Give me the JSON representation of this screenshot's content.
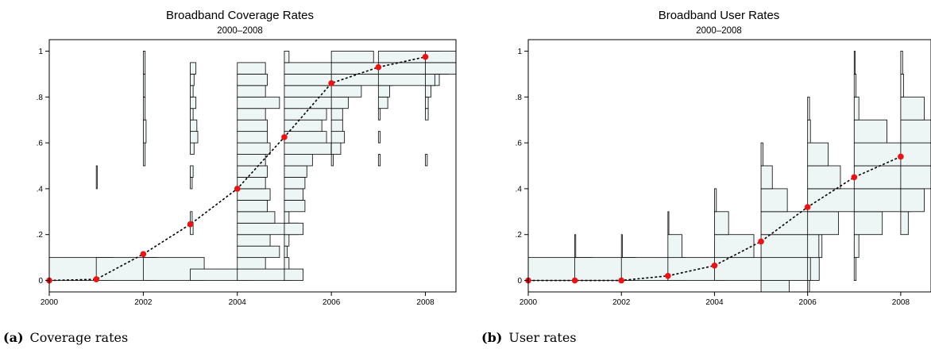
{
  "chart_data": [
    {
      "type": "line",
      "title": "Broadband Coverage Rates",
      "subtitle": "2000–2008",
      "xlabel": "",
      "ylabel": "",
      "xlim": [
        2000,
        2008.65
      ],
      "ylim": [
        -0.05,
        1.05
      ],
      "xticks": [
        2000,
        2002,
        2004,
        2006,
        2008
      ],
      "yticks": [
        0,
        0.2,
        0.4,
        0.6,
        0.8,
        1
      ],
      "ytick_labels": [
        "0",
        ".2",
        ".4",
        ".6",
        ".8",
        "1"
      ],
      "grid": false,
      "series": [
        {
          "x": [
            2000,
            2001,
            2002,
            2003,
            2004,
            2005,
            2006,
            2007,
            2008
          ],
          "y": [
            0.0,
            0.005,
            0.115,
            0.245,
            0.4,
            0.625,
            0.86,
            0.93,
            0.975
          ]
        }
      ],
      "histograms": [
        {
          "year": 2000,
          "bin_width": 0.1,
          "bins": [
            [
              0.05,
              0.68
            ]
          ]
        },
        {
          "year": 2001,
          "bin_width": 0.1,
          "bins": [
            [
              0.05,
              0.65
            ],
            [
              0.45,
              0.01
            ]
          ]
        },
        {
          "year": 2002,
          "bin_width": 0.1,
          "bins": [
            [
              0.05,
              0.65
            ],
            [
              0.55,
              0.02
            ],
            [
              0.65,
              0.03
            ],
            [
              0.75,
              0.02
            ],
            [
              0.85,
              0.02
            ],
            [
              0.95,
              0.02
            ]
          ]
        },
        {
          "year": 2003,
          "bin_width": 0.05,
          "bins": [
            [
              0.025,
              0.65
            ],
            [
              0.225,
              0.03
            ],
            [
              0.275,
              0.02
            ],
            [
              0.425,
              0.02
            ],
            [
              0.475,
              0.03
            ],
            [
              0.575,
              0.04
            ],
            [
              0.625,
              0.08
            ],
            [
              0.675,
              0.07
            ],
            [
              0.725,
              0.03
            ],
            [
              0.775,
              0.06
            ],
            [
              0.825,
              0.03
            ],
            [
              0.875,
              0.04
            ],
            [
              0.925,
              0.06
            ]
          ]
        },
        {
          "year": 2004,
          "bin_width": 0.05,
          "bins": [
            [
              0.025,
              0.55
            ],
            [
              0.075,
              0.3
            ],
            [
              0.125,
              0.45
            ],
            [
              0.175,
              0.35
            ],
            [
              0.225,
              0.65
            ],
            [
              0.275,
              0.4
            ],
            [
              0.325,
              0.32
            ],
            [
              0.375,
              0.35
            ],
            [
              0.425,
              0.3
            ],
            [
              0.475,
              0.32
            ],
            [
              0.525,
              0.3
            ],
            [
              0.575,
              0.35
            ],
            [
              0.625,
              0.32
            ],
            [
              0.675,
              0.32
            ],
            [
              0.725,
              0.3
            ],
            [
              0.775,
              0.45
            ],
            [
              0.825,
              0.3
            ],
            [
              0.875,
              0.32
            ],
            [
              0.925,
              0.3
            ]
          ]
        },
        {
          "year": 2005,
          "bin_width": 0.05,
          "bins": [
            [
              0.025,
              0.2
            ],
            [
              0.075,
              0.05
            ],
            [
              0.125,
              0.03
            ],
            [
              0.175,
              0.05
            ],
            [
              0.225,
              0.2
            ],
            [
              0.275,
              0.05
            ],
            [
              0.325,
              0.22
            ],
            [
              0.375,
              0.2
            ],
            [
              0.425,
              0.22
            ],
            [
              0.475,
              0.24
            ],
            [
              0.525,
              0.3
            ],
            [
              0.575,
              0.5
            ],
            [
              0.625,
              0.45
            ],
            [
              0.675,
              0.4
            ],
            [
              0.725,
              0.45
            ],
            [
              0.775,
              0.6
            ],
            [
              0.825,
              0.55
            ],
            [
              0.875,
              0.6
            ],
            [
              0.925,
              0.6
            ],
            [
              0.975,
              0.05
            ]
          ]
        },
        {
          "year": 2006,
          "bin_width": 0.05,
          "bins": [
            [
              0.525,
              0.02
            ],
            [
              0.575,
              0.1
            ],
            [
              0.625,
              0.14
            ],
            [
              0.675,
              0.12
            ],
            [
              0.725,
              0.12
            ],
            [
              0.775,
              0.18
            ],
            [
              0.825,
              0.32
            ],
            [
              0.875,
              0.65
            ],
            [
              0.925,
              0.55
            ],
            [
              0.975,
              0.45
            ]
          ]
        },
        {
          "year": 2007,
          "bin_width": 0.05,
          "bins": [
            [
              0.525,
              0.02
            ],
            [
              0.625,
              0.02
            ],
            [
              0.725,
              0.02
            ],
            [
              0.775,
              0.1
            ],
            [
              0.825,
              0.12
            ],
            [
              0.875,
              0.65
            ],
            [
              0.925,
              0.75
            ],
            [
              0.975,
              0.65
            ]
          ]
        },
        {
          "year": 2008,
          "bin_width": 0.05,
          "bins": [
            [
              0.525,
              0.02
            ],
            [
              0.725,
              0.03
            ],
            [
              0.775,
              0.03
            ],
            [
              0.825,
              0.06
            ],
            [
              0.875,
              0.1
            ],
            [
              0.925,
              0.35
            ],
            [
              0.975,
              0.65
            ]
          ]
        }
      ]
    },
    {
      "type": "line",
      "title": "Broadband User Rates",
      "subtitle": "2000–2008",
      "xlabel": "",
      "ylabel": "",
      "xlim": [
        2000,
        2008.65
      ],
      "ylim": [
        -0.05,
        1.05
      ],
      "xticks": [
        2000,
        2002,
        2004,
        2006,
        2008
      ],
      "yticks": [
        0,
        0.2,
        0.4,
        0.6,
        0.8,
        1
      ],
      "ytick_labels": [
        "0",
        ".2",
        ".4",
        ".6",
        ".8",
        "1"
      ],
      "grid": false,
      "series": [
        {
          "x": [
            2000,
            2001,
            2002,
            2003,
            2004,
            2005,
            2006,
            2007,
            2008
          ],
          "y": [
            0.0,
            0.0,
            0.0,
            0.02,
            0.065,
            0.17,
            0.32,
            0.45,
            0.54
          ]
        }
      ],
      "histograms": [
        {
          "year": 2000,
          "bin_width": 0.1,
          "bins": [
            [
              0.05,
              0.68
            ]
          ]
        },
        {
          "year": 2001,
          "bin_width": 0.1,
          "bins": [
            [
              0.05,
              0.65
            ],
            [
              0.15,
              0.01
            ]
          ]
        },
        {
          "year": 2002,
          "bin_width": 0.1,
          "bins": [
            [
              0.05,
              0.68
            ],
            [
              0.15,
              0.01
            ]
          ]
        },
        {
          "year": 2003,
          "bin_width": 0.1,
          "bins": [
            [
              0.05,
              0.62
            ],
            [
              0.15,
              0.15
            ],
            [
              0.25,
              0.01
            ]
          ]
        },
        {
          "year": 2004,
          "bin_width": 0.1,
          "bins": [
            [
              0.05,
              0.6
            ],
            [
              0.15,
              0.42
            ],
            [
              0.25,
              0.15
            ],
            [
              0.35,
              0.02
            ]
          ]
        },
        {
          "year": 2005,
          "bin_width": 0.1,
          "bins": [
            [
              -0.05,
              0.3
            ],
            [
              0.05,
              0.62
            ],
            [
              0.15,
              0.65
            ],
            [
              0.25,
              0.55
            ],
            [
              0.35,
              0.28
            ],
            [
              0.45,
              0.12
            ],
            [
              0.55,
              0.02
            ]
          ]
        },
        {
          "year": 2006,
          "bin_width": 0.1,
          "bins": [
            [
              -0.05,
              0.02
            ],
            [
              0.05,
              0.03
            ],
            [
              0.15,
              0.12
            ],
            [
              0.25,
              0.33
            ],
            [
              0.35,
              0.7
            ],
            [
              0.45,
              0.35
            ],
            [
              0.55,
              0.22
            ],
            [
              0.65,
              0.03
            ],
            [
              0.75,
              0.02
            ]
          ]
        },
        {
          "year": 2007,
          "bin_width": 0.1,
          "bins": [
            [
              0.05,
              0.02
            ],
            [
              0.15,
              0.05
            ],
            [
              0.25,
              0.3
            ],
            [
              0.35,
              0.6
            ],
            [
              0.45,
              0.75
            ],
            [
              0.55,
              0.62
            ],
            [
              0.65,
              0.35
            ],
            [
              0.75,
              0.05
            ],
            [
              0.85,
              0.02
            ],
            [
              0.95,
              0.01
            ]
          ]
        },
        {
          "year": 2008,
          "bin_width": 0.1,
          "bins": [
            [
              0.25,
              0.08
            ],
            [
              0.35,
              0.25
            ],
            [
              0.45,
              0.35
            ],
            [
              0.55,
              0.7
            ],
            [
              0.65,
              0.85
            ],
            [
              0.75,
              0.25
            ],
            [
              0.85,
              0.03
            ],
            [
              0.95,
              0.02
            ]
          ]
        }
      ]
    }
  ],
  "captions": [
    {
      "label": "(a)",
      "text": "Coverage rates"
    },
    {
      "label": "(b)",
      "text": "User rates"
    }
  ],
  "colors": {
    "bar_fill": "#eef5f5",
    "bar_stroke": "#000000",
    "line": "#000000",
    "marker": "#ee1111"
  }
}
